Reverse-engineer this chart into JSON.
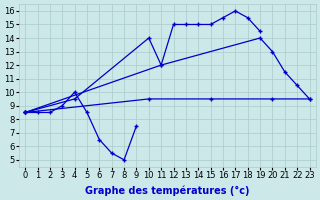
{
  "xlabel": "Graphe des températures (°c)",
  "background_color": "#cce8e8",
  "grid_color": "#aacccc",
  "line_color": "#0000cc",
  "xlim": [
    -0.5,
    23.5
  ],
  "ylim": [
    4.5,
    16.5
  ],
  "xticks": [
    0,
    1,
    2,
    3,
    4,
    5,
    6,
    7,
    8,
    9,
    10,
    11,
    12,
    13,
    14,
    15,
    16,
    17,
    18,
    19,
    20,
    21,
    22,
    23
  ],
  "yticks": [
    5,
    6,
    7,
    8,
    9,
    10,
    11,
    12,
    13,
    14,
    15,
    16
  ],
  "line1_x": [
    0,
    1,
    2,
    3,
    4,
    5,
    6,
    7,
    8,
    9
  ],
  "line1_y": [
    8.5,
    8.5,
    8.5,
    9.0,
    10.0,
    8.5,
    6.5,
    5.5,
    5.0,
    7.5
  ],
  "line2_x": [
    0,
    4,
    10,
    11,
    12,
    13,
    14,
    15,
    16,
    17,
    18,
    19
  ],
  "line2_y": [
    8.5,
    9.5,
    14.0,
    12.0,
    15.0,
    15.0,
    15.0,
    15.0,
    15.5,
    16.0,
    15.5,
    14.5
  ],
  "line3_x": [
    0,
    11,
    19,
    20,
    21,
    22,
    23
  ],
  "line3_y": [
    8.5,
    12.0,
    14.0,
    13.0,
    11.5,
    10.5,
    9.5
  ],
  "line4_x": [
    0,
    10,
    15,
    20,
    23
  ],
  "line4_y": [
    8.5,
    9.5,
    9.5,
    9.5,
    9.5
  ],
  "font_size_xlabel": 7,
  "font_size_ticks": 6
}
